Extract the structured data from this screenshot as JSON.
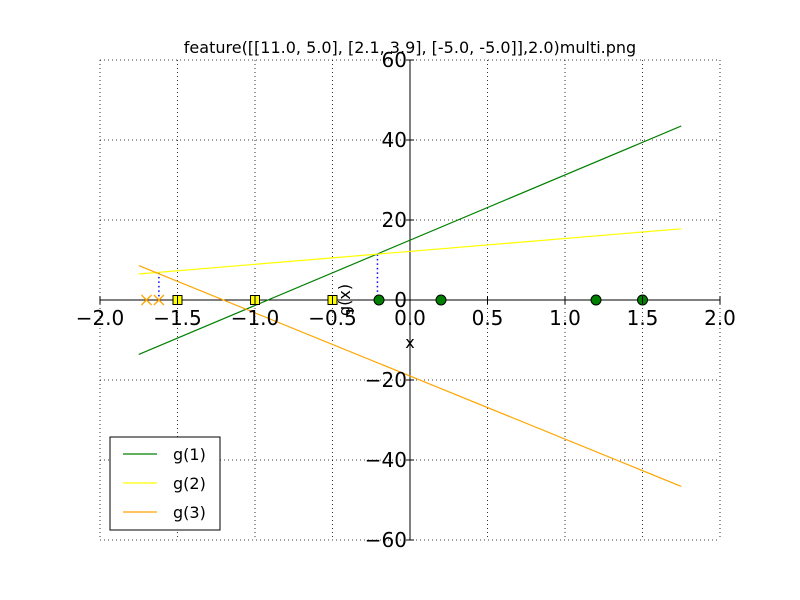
{
  "chart_data": {
    "type": "line",
    "title": "feature([[11.0, 5.0], [2.1, 3.9], [-5.0, -5.0]],2.0)multi.png",
    "xlabel": "x",
    "ylabel": "g(x)",
    "xlim": [
      -2.0,
      2.0
    ],
    "ylim": [
      -60,
      60
    ],
    "x_ticks": [
      -2.0,
      -1.5,
      -1.0,
      -0.5,
      0.0,
      0.5,
      1.0,
      1.5,
      2.0
    ],
    "x_tick_labels": [
      "−2.0",
      "−1.5",
      "−1.0",
      "−0.5",
      "0.0",
      "0.5",
      "1.0",
      "1.5",
      "2.0"
    ],
    "y_ticks": [
      -60,
      -40,
      -20,
      0,
      20,
      40,
      60
    ],
    "y_tick_labels": [
      "−60",
      "−40",
      "−20",
      "0",
      "20",
      "40",
      "60"
    ],
    "grid": true,
    "legend_position": "lower-left",
    "series": [
      {
        "name": "g(1)",
        "color": "#008000",
        "x": [
          -1.75,
          1.75
        ],
        "y": [
          -13.6,
          43.5
        ]
      },
      {
        "name": "g(2)",
        "color": "#ffff00",
        "x": [
          -1.75,
          1.75
        ],
        "y": [
          6.5,
          17.8
        ]
      },
      {
        "name": "g(3)",
        "color": "#ffa500",
        "x": [
          -1.75,
          1.75
        ],
        "y": [
          8.6,
          -46.6
        ]
      }
    ],
    "points": [
      {
        "kind": "circle",
        "color": "#008000",
        "x": -0.2,
        "y": 0
      },
      {
        "kind": "circle",
        "color": "#008000",
        "x": 0.2,
        "y": 0
      },
      {
        "kind": "circle",
        "color": "#008000",
        "x": 1.2,
        "y": 0
      },
      {
        "kind": "circle",
        "color": "#008000",
        "x": 1.5,
        "y": 0
      },
      {
        "kind": "square",
        "color": "#ffff00",
        "x": -1.5,
        "y": 0
      },
      {
        "kind": "square",
        "color": "#ffff00",
        "x": -1.0,
        "y": 0
      },
      {
        "kind": "square",
        "color": "#ffff00",
        "x": -0.5,
        "y": 0
      },
      {
        "kind": "cross",
        "color": "#ffa500",
        "x": -1.7,
        "y": 0
      },
      {
        "kind": "cross",
        "color": "#ffa500",
        "x": -1.62,
        "y": 0
      }
    ],
    "dotted_markers": [
      {
        "x": -1.62,
        "y": 6.9
      },
      {
        "x": -0.21,
        "y": 11.4
      }
    ]
  }
}
